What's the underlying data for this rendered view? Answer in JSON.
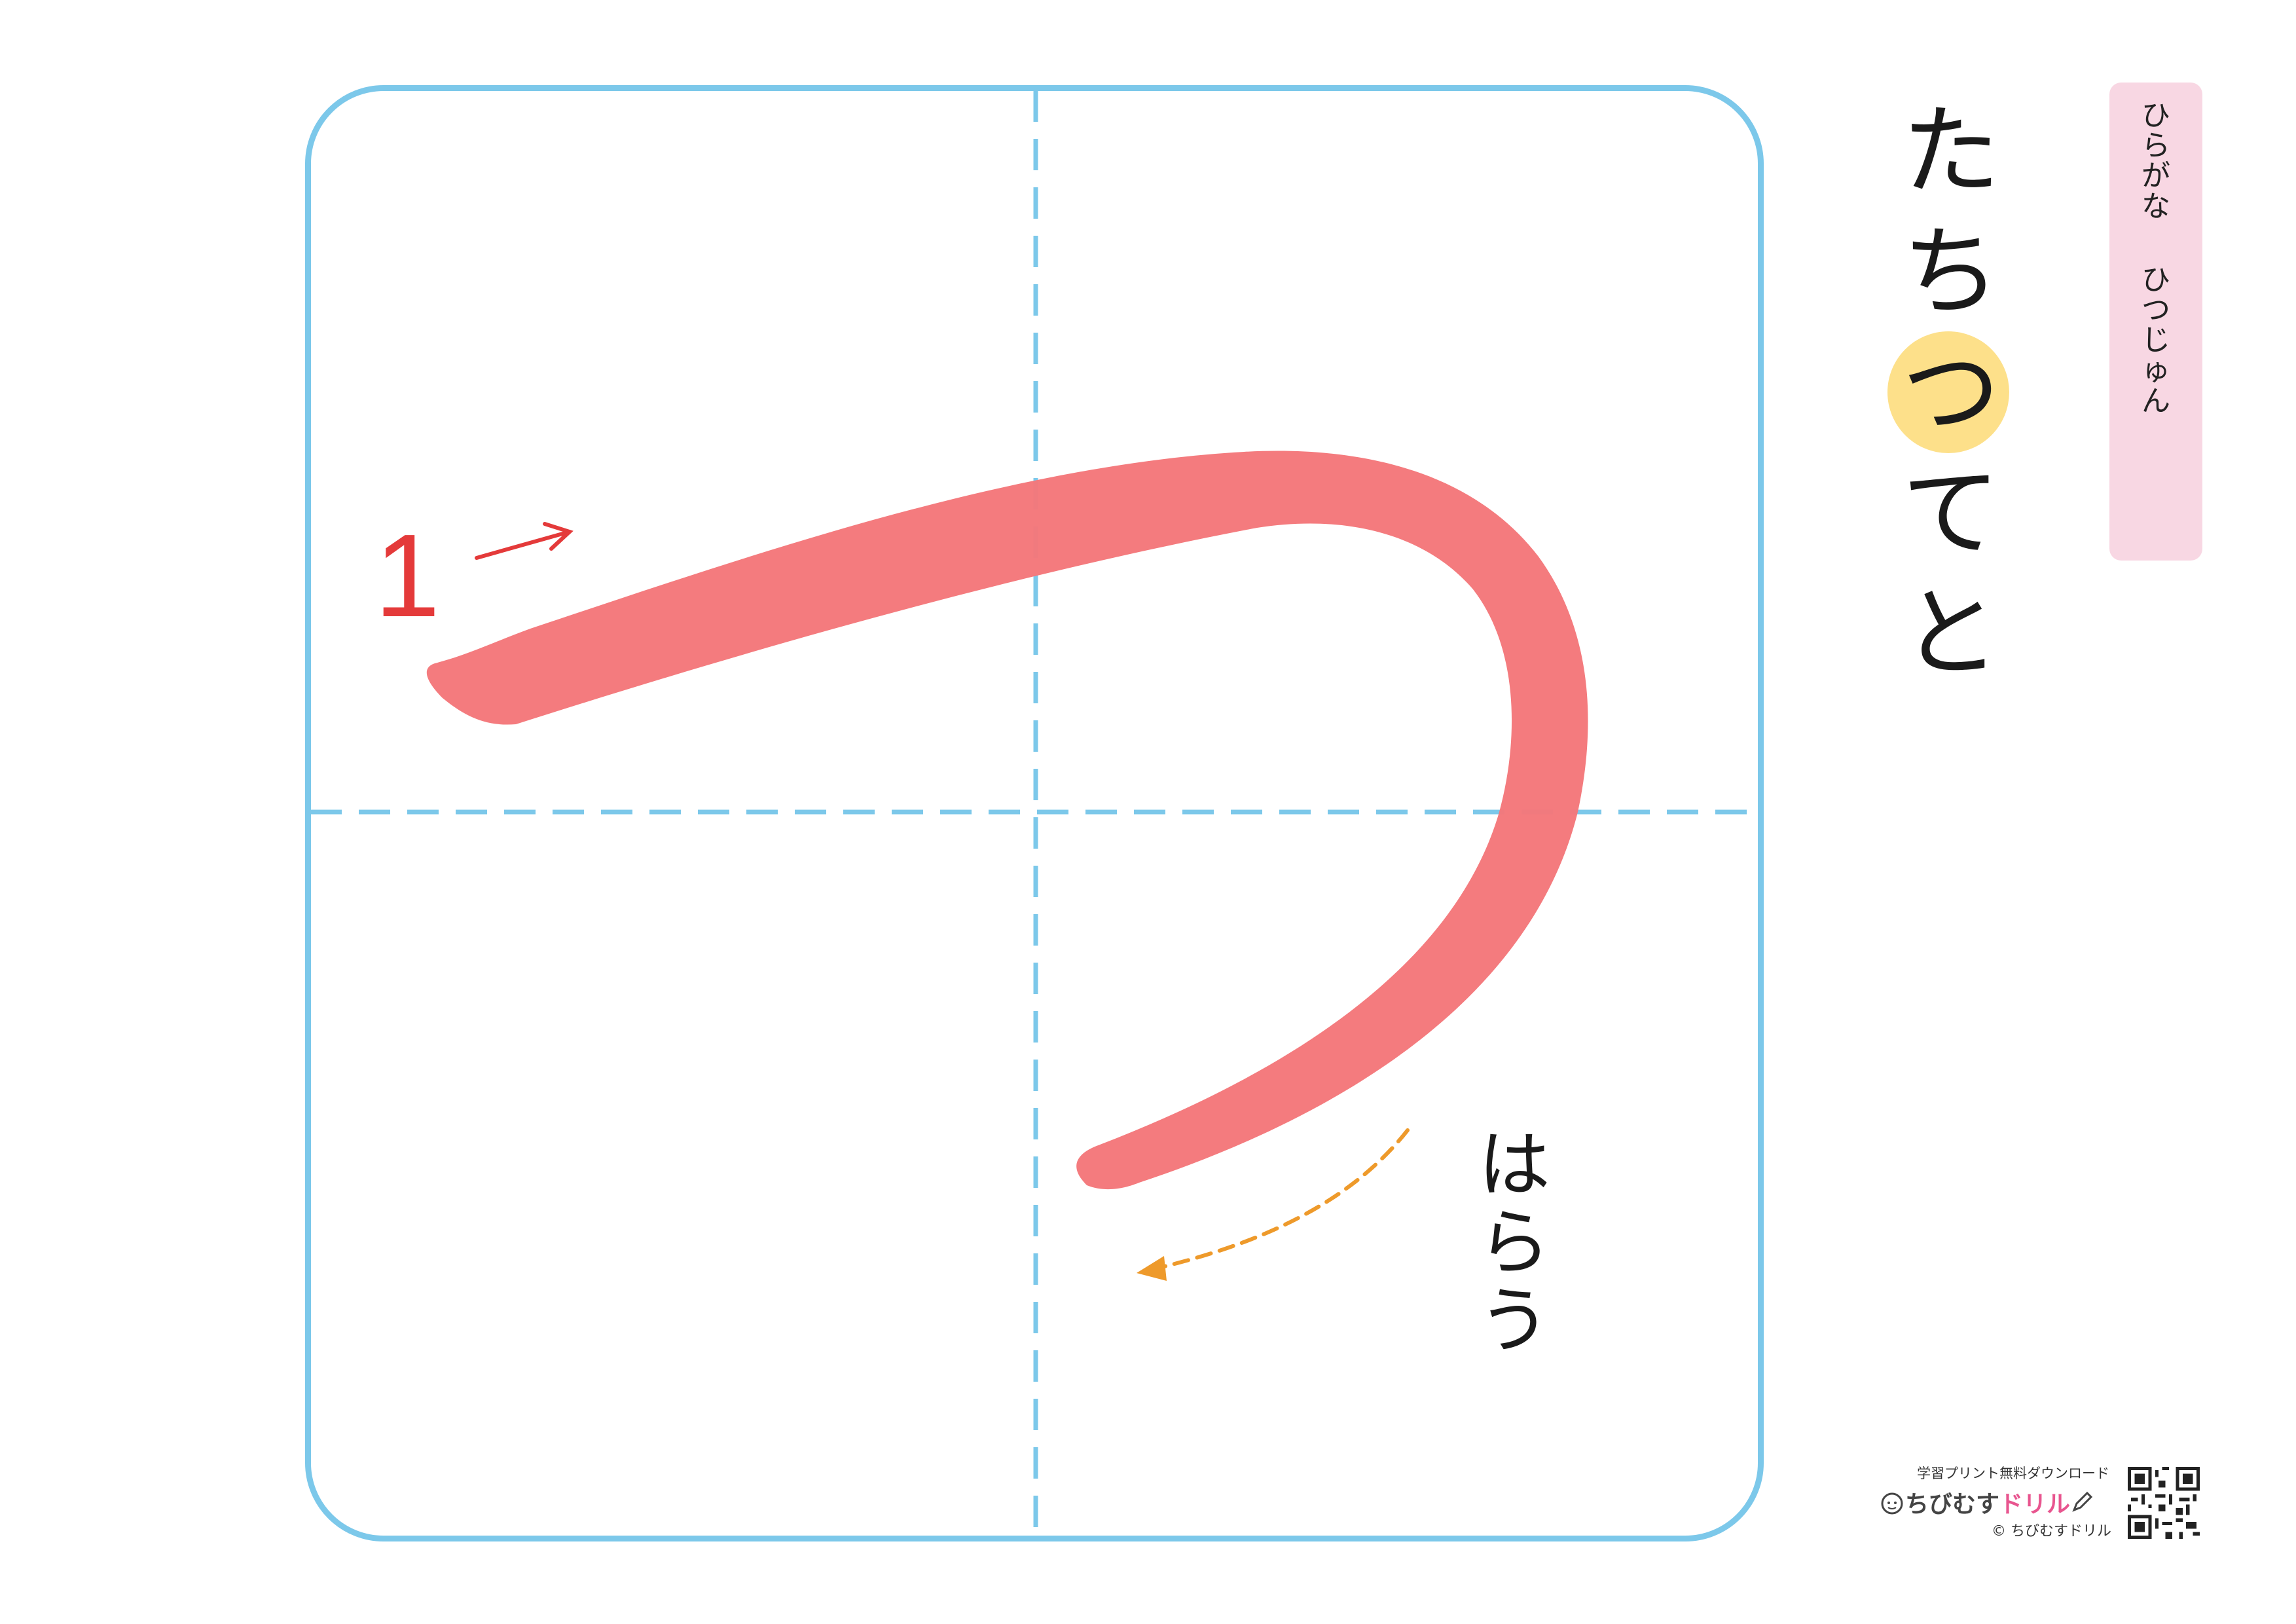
{
  "title_banner": {
    "label_left": "ひらがな",
    "label_right": "ひつじゅん"
  },
  "kana_row": [
    "た",
    "ち",
    "つ",
    "て",
    "と"
  ],
  "highlighted_kana": "つ",
  "practice": {
    "character": "つ",
    "stroke_number": "1",
    "stroke_end_label": "はらう",
    "colors": {
      "box_border": "#7cc8ea",
      "guide_lines": "#7cc8ea",
      "stroke_fill": "#f4777a",
      "start_arrow": "#e43a3a",
      "sweep_arrow": "#ee9a2b",
      "highlight": "#fde08a",
      "banner": "#f8d7e3"
    }
  },
  "footer": {
    "tagline": "学習プリント無料ダウンロード",
    "brand_main": "ちびむす",
    "brand_accent": "ドリル",
    "copyright": "© ちびむすドリル"
  }
}
